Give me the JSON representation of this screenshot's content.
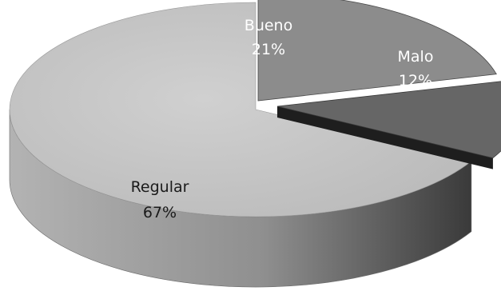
{
  "chart_data": {
    "type": "pie",
    "three_d": true,
    "title": "",
    "legend": "none",
    "categories": [
      "Bueno",
      "Malo",
      "Regular"
    ],
    "values": [
      21,
      12,
      67
    ],
    "labels": [
      {
        "category": "Bueno",
        "percent": "21%"
      },
      {
        "category": "Malo",
        "percent": "12%"
      },
      {
        "category": "Regular",
        "percent": "67%"
      }
    ],
    "colors": {
      "Bueno": "#8c8c8c",
      "Malo": "#666666",
      "Regular": "#c4c4c4"
    }
  }
}
